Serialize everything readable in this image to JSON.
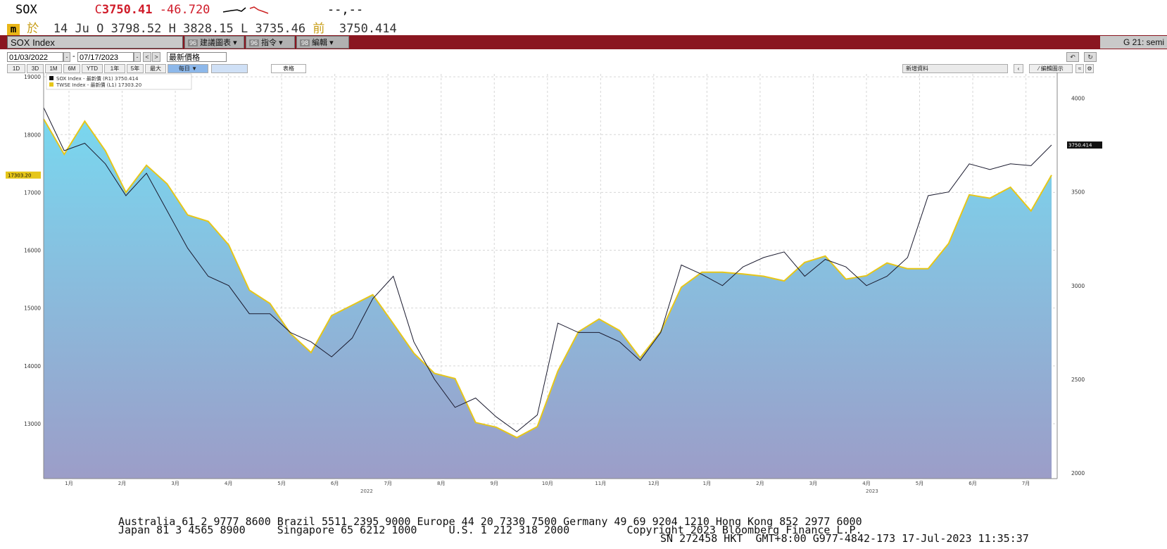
{
  "quote": {
    "ticker": "SOX",
    "price_prefix": "C",
    "price": "3750.41",
    "change": "-46.720",
    "dashes": "--,--",
    "icon_char": "m",
    "kanji_1": "於",
    "date": "14 Ju",
    "open_label": "O",
    "open": "3798.52",
    "high_label": "H",
    "high": "3828.15",
    "low_label": "L",
    "low": "3735.46",
    "prev_label": "前",
    "prev": "3750.414"
  },
  "toolbar": {
    "title": "SOX Index",
    "btn1_num": "96",
    "btn1_label": "建議圖表",
    "btn2_num": "96",
    "btn2_label": "指令",
    "btn3_num": "98",
    "btn3_label": "編輯",
    "right_label": "G 21: semi"
  },
  "datebar": {
    "start_date": "01/03/2022",
    "end_date": "07/17/2023",
    "mode": "最新價格"
  },
  "rangebar": {
    "buttons": [
      "1D",
      "3D",
      "1M",
      "6M",
      "YTD",
      "1年",
      "5年",
      "最大"
    ],
    "freq": "每日",
    "table_label": "表格",
    "add_data": "新增資料",
    "edit_label": "編輯圖示"
  },
  "chart_data": {
    "type": "area",
    "title": "",
    "series": [
      {
        "name": "SOX Index - 最新價 (R1) 3750.414",
        "axis": "right",
        "color": "#1a1a2e",
        "last": 3750.414
      },
      {
        "name": "TWSE Index - 最新價 (L1) 17303.20",
        "axis": "left",
        "color": "#e6c619",
        "last": 17303.2
      }
    ],
    "left_axis": {
      "ticks": [
        13000,
        14000,
        15000,
        16000,
        17000,
        18000,
        19000
      ],
      "range": [
        12050,
        19050
      ],
      "tag": "17303.20"
    },
    "right_axis": {
      "ticks": [
        2000,
        2500,
        3000,
        3500,
        4000
      ],
      "range": [
        1970,
        4130
      ],
      "tag": "3750.414"
    },
    "months": [
      "1月",
      "2月",
      "3月",
      "4月",
      "5月",
      "6月",
      "7月",
      "8月",
      "9月",
      "10月",
      "11月",
      "12月",
      "1月",
      "2月",
      "3月",
      "4月",
      "5月",
      "6月",
      "7月"
    ],
    "years": [
      "2022",
      "2023"
    ],
    "twse": [
      18270,
      17660,
      18232,
      17720,
      17000,
      17470,
      17150,
      16610,
      16500,
      16090,
      15310,
      15080,
      14560,
      14230,
      14870,
      15050,
      15230,
      14730,
      14220,
      13870,
      13780,
      13020,
      12940,
      12760,
      12950,
      13910,
      14590,
      14810,
      14610,
      14140,
      14590,
      15360,
      15620,
      15620,
      15590,
      15550,
      15470,
      15790,
      15900,
      15500,
      15560,
      15780,
      15680,
      15680,
      16120,
      16960,
      16900,
      17090,
      16680,
      17300
    ],
    "sox": [
      3950,
      3720,
      3760,
      3650,
      3480,
      3600,
      3400,
      3200,
      3050,
      3000,
      2850,
      2850,
      2750,
      2700,
      2620,
      2720,
      2930,
      3050,
      2700,
      2500,
      2350,
      2400,
      2300,
      2220,
      2310,
      2800,
      2750,
      2750,
      2700,
      2600,
      2750,
      3110,
      3060,
      3000,
      3100,
      3150,
      3180,
      3050,
      3140,
      3100,
      3000,
      3050,
      3150,
      3480,
      3500,
      3650,
      3620,
      3650,
      3640,
      3750.414
    ]
  },
  "footer": {
    "line1": "Australia 61 2 9777 8600 Brazil 5511 2395 9000 Europe 44 20 7330 7500 Germany 49 69 9204 1210 Hong Kong 852 2977 6000",
    "line2": "Japan 81 3 4565 8900     Singapore 65 6212 1000     U.S. 1 212 318 2000         Copyright 2023 Bloomberg Finance L.P.",
    "line3": "SN 272458 HKT  GMT+8:00 G977-4842-173 17-Jul-2023 11:35:37"
  }
}
